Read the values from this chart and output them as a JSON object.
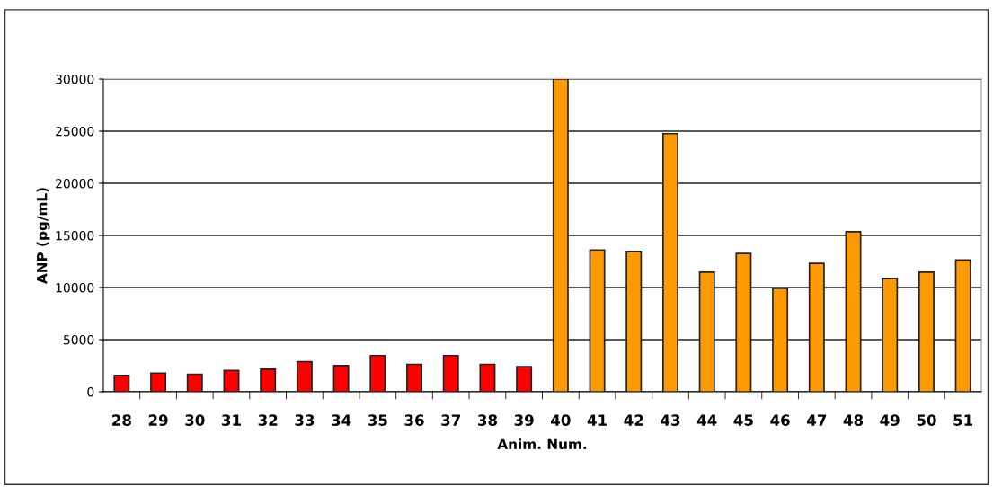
{
  "chart_data": {
    "type": "bar",
    "xlabel": "Anim. Num.",
    "ylabel": "ANP (pg/mL)",
    "categories": [
      "28",
      "29",
      "30",
      "31",
      "32",
      "33",
      "34",
      "35",
      "36",
      "37",
      "38",
      "39",
      "40",
      "41",
      "42",
      "43",
      "44",
      "45",
      "46",
      "47",
      "48",
      "49",
      "50",
      "51"
    ],
    "values": [
      1560,
      1790,
      1680,
      2050,
      2170,
      2890,
      2510,
      3470,
      2630,
      3470,
      2630,
      2400,
      30000,
      13600,
      13460,
      24760,
      11480,
      13260,
      9920,
      12310,
      15360,
      10870,
      11480,
      12650
    ],
    "colors": [
      "#ff0000",
      "#ff0000",
      "#ff0000",
      "#ff0000",
      "#ff0000",
      "#ff0000",
      "#ff0000",
      "#ff0000",
      "#ff0000",
      "#ff0000",
      "#ff0000",
      "#ff0000",
      "#ff9900",
      "#ff9900",
      "#ff9900",
      "#ff9900",
      "#ff9900",
      "#ff9900",
      "#ff9900",
      "#ff9900",
      "#ff9900",
      "#ff9900",
      "#ff9900",
      "#ff9900"
    ],
    "ylim": [
      0,
      30000
    ],
    "yticks": [
      0,
      5000,
      10000,
      15000,
      20000,
      25000,
      30000
    ],
    "grid": "y",
    "legend": false
  }
}
